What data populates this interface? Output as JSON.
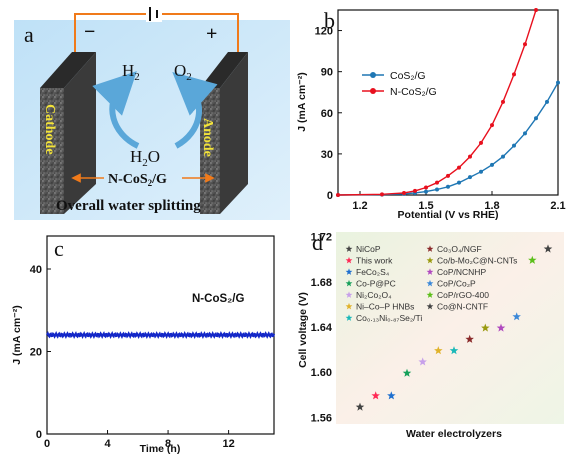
{
  "panels": {
    "a": {
      "letter": "a",
      "minus": "−",
      "plus": "+",
      "cathode": "Cathode",
      "anode": "Anode",
      "h2": "H",
      "h2_sub": "2",
      "o2": "O",
      "o2_sub": "2",
      "h2o": "H",
      "h2o_sub": "2",
      "h2o_tail": "O",
      "catalyst": "N-CoS",
      "catalyst_sub": "2",
      "catalyst_tail": "/G",
      "caption": "Overall water splitting"
    },
    "b": {
      "letter": "b"
    },
    "c": {
      "letter": "c",
      "annotation": "N-CoS₂/G"
    },
    "d": {
      "letter": "d"
    }
  },
  "chart_data": [
    {
      "panel": "b",
      "type": "line",
      "xlabel": "Potential (V vs RHE)",
      "ylabel": "J (mA cm⁻²)",
      "xlim": [
        1.1,
        2.1
      ],
      "ylim": [
        0,
        135
      ],
      "xticks": [
        "1.2",
        "1.5",
        "1.8",
        "2.1"
      ],
      "yticks": [
        "0",
        "30",
        "60",
        "90",
        "120"
      ],
      "legend_position": "center-left",
      "series": [
        {
          "name": "CoS₂/G",
          "color": "#1f77b4",
          "x": [
            1.1,
            1.3,
            1.4,
            1.45,
            1.5,
            1.55,
            1.6,
            1.65,
            1.7,
            1.75,
            1.8,
            1.85,
            1.9,
            1.95,
            2.0,
            2.05,
            2.1
          ],
          "y": [
            0,
            0.3,
            0.8,
            1.5,
            2.5,
            4,
            6,
            9,
            13,
            17,
            22,
            28,
            36,
            45,
            56,
            68,
            82
          ]
        },
        {
          "name": "N-CoS₂/G",
          "color": "#e8101e",
          "x": [
            1.1,
            1.3,
            1.4,
            1.45,
            1.5,
            1.55,
            1.6,
            1.65,
            1.7,
            1.75,
            1.8,
            1.85,
            1.9,
            1.95,
            2.0
          ],
          "y": [
            0,
            0.5,
            1.5,
            3,
            5.5,
            9,
            14,
            20,
            28,
            38,
            51,
            68,
            88,
            110,
            135
          ]
        }
      ]
    },
    {
      "panel": "c",
      "type": "line",
      "xlabel": "Time (h)",
      "ylabel": "J (mA cm⁻²)",
      "xlim": [
        0,
        15
      ],
      "ylim": [
        0,
        48
      ],
      "xticks": [
        "0",
        "4",
        "8",
        "12"
      ],
      "yticks": [
        "0",
        "20",
        "40"
      ],
      "series": [
        {
          "name": "N-CoS₂/G",
          "color": "#1428c8",
          "x": [
            0,
            15
          ],
          "y": [
            24,
            24
          ]
        }
      ]
    },
    {
      "panel": "d",
      "type": "scatter",
      "xlabel": "Water electrolyzers",
      "ylabel": "Cell voltage (V)",
      "ylim": [
        1.555,
        1.725
      ],
      "yticks": [
        "1.56",
        "1.60",
        "1.64",
        "1.68",
        "1.72"
      ],
      "legend_position": "top-left",
      "points": [
        {
          "name": "NiCoP",
          "value": 1.57,
          "color": "#444444"
        },
        {
          "name": "This work",
          "value": 1.58,
          "color": "#ff2a55"
        },
        {
          "name": "FeCo₂S₄",
          "value": 1.58,
          "color": "#1e6fcf"
        },
        {
          "name": "Co-P@PC",
          "value": 1.6,
          "color": "#16a05a"
        },
        {
          "name": "Ni₂Co₂O₄",
          "value": 1.61,
          "color": "#c7a0ea"
        },
        {
          "name": "Ni–Co–P HNBs",
          "value": 1.62,
          "color": "#e0b22a"
        },
        {
          "name": "Co₀.₁₃Ni₀.₈₇Se₂/Ti",
          "value": 1.62,
          "color": "#1ab8b8"
        },
        {
          "name": "Co₃O₄/NGF",
          "value": 1.63,
          "color": "#8a2a2a"
        },
        {
          "name": "Co/b-Mo₂C@N-CNTs",
          "value": 1.64,
          "color": "#9a9a10"
        },
        {
          "name": "CoP/NCNHP",
          "value": 1.64,
          "color": "#b04abf"
        },
        {
          "name": "CoP/Co₂P",
          "value": 1.65,
          "color": "#3b88d8"
        },
        {
          "name": "CoP/rGO-400",
          "value": 1.7,
          "color": "#5cbf1a"
        },
        {
          "name": "Co@N-CNTF",
          "value": 1.71,
          "color": "#444444"
        }
      ]
    }
  ]
}
